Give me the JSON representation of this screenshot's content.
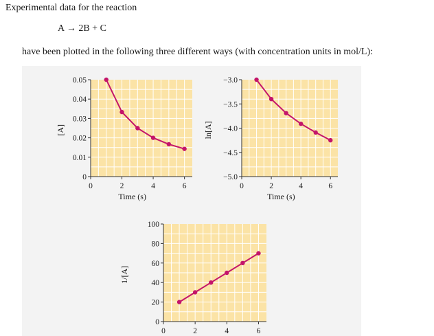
{
  "text": {
    "intro": "Experimental data for the reaction",
    "reaction": "A → 2B + C",
    "description": "have been plotted in the following three different ways (with concentration units in mol/L):"
  },
  "colors": {
    "plot_bg": "#fbe3a6",
    "grid": "#ffffff",
    "series": "#c4156a",
    "panel": "#f3f3f3"
  },
  "chart_data": [
    {
      "type": "line",
      "xlabel": "Time (s)",
      "ylabel": "[A]",
      "xlim": [
        0,
        6.5
      ],
      "ylim": [
        0,
        0.05
      ],
      "xticks": [
        0,
        2,
        4,
        6
      ],
      "xtick_labels": [
        "0",
        "2",
        "4",
        "6"
      ],
      "yticks": [
        0,
        0.01,
        0.02,
        0.03,
        0.04,
        0.05
      ],
      "ytick_labels": [
        "0",
        "0.01",
        "0.02",
        "0.03",
        "0.04",
        "0.05"
      ],
      "grid": true,
      "x": [
        1,
        2,
        3,
        4,
        5,
        6
      ],
      "y": [
        0.05,
        0.0333,
        0.025,
        0.02,
        0.0167,
        0.0143
      ]
    },
    {
      "type": "line",
      "xlabel": "Time (s)",
      "ylabel": "ln[A]",
      "xlim": [
        0,
        6.5
      ],
      "ylim": [
        -5.0,
        -3.0
      ],
      "xticks": [
        0,
        2,
        4,
        6
      ],
      "xtick_labels": [
        "0",
        "2",
        "4",
        "6"
      ],
      "yticks": [
        -5.0,
        -4.5,
        -4.0,
        -3.5,
        -3.0
      ],
      "ytick_labels": [
        "−5.0",
        "−4.5",
        "−4.0",
        "−3.5",
        "−3.0"
      ],
      "grid": true,
      "x": [
        1,
        2,
        3,
        4,
        5,
        6
      ],
      "y": [
        -3.0,
        -3.4,
        -3.69,
        -3.91,
        -4.09,
        -4.25
      ]
    },
    {
      "type": "line",
      "xlabel": "",
      "ylabel": "1/[A]",
      "xlim": [
        0,
        6.5
      ],
      "ylim": [
        0,
        100
      ],
      "xticks": [
        0,
        2,
        4,
        6
      ],
      "xtick_labels": [
        "0",
        "2",
        "4",
        "6"
      ],
      "yticks": [
        0,
        20,
        40,
        60,
        80,
        100
      ],
      "ytick_labels": [
        "0",
        "20",
        "40",
        "60",
        "80",
        "100"
      ],
      "grid": true,
      "x": [
        1,
        2,
        3,
        4,
        5,
        6
      ],
      "y": [
        20,
        30,
        40,
        50,
        60,
        70
      ]
    }
  ]
}
